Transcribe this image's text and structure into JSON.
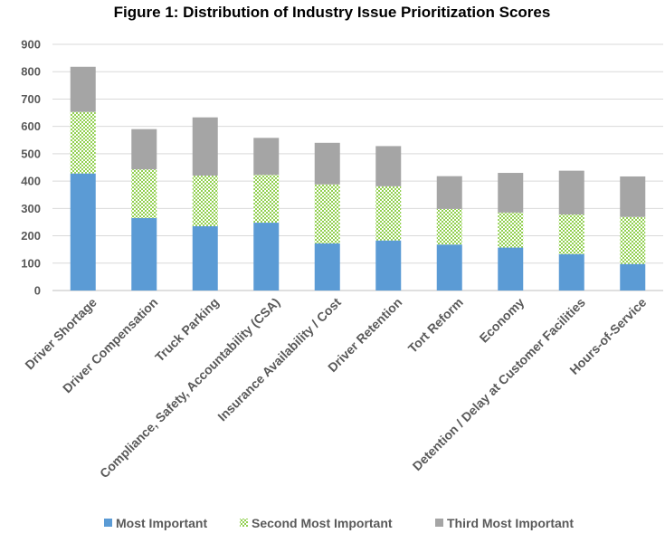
{
  "chart_data": {
    "type": "bar",
    "stacked": true,
    "title": "Figure 1: Distribution of Industry Issue Prioritization Scores",
    "xlabel": "",
    "ylabel": "",
    "ylim": [
      0,
      900
    ],
    "yticks": [
      0,
      100,
      200,
      300,
      400,
      500,
      600,
      700,
      800,
      900
    ],
    "grid": true,
    "legend_position": "bottom",
    "categories": [
      "Driver Shortage",
      "Driver Compensation",
      "Truck Parking",
      "Compliance, Safety, Accountability (CSA)",
      "Insurance Availability / Cost",
      "Driver Retention",
      "Tort Reform",
      "Economy",
      "Detention / Delay at Customer Facilities",
      "Hours-of-Service"
    ],
    "series": [
      {
        "name": "Most Important",
        "color": "#5b9bd5",
        "pattern": "solid",
        "values": [
          428,
          265,
          235,
          248,
          172,
          183,
          168,
          157,
          133,
          97
        ]
      },
      {
        "name": "Second Most Important",
        "color": "#92d050",
        "pattern": "checker",
        "values": [
          225,
          178,
          185,
          175,
          216,
          198,
          130,
          128,
          145,
          172
        ]
      },
      {
        "name": "Third Most Important",
        "color": "#a5a5a5",
        "pattern": "solid",
        "values": [
          165,
          147,
          213,
          135,
          152,
          147,
          120,
          145,
          160,
          148
        ]
      }
    ]
  }
}
